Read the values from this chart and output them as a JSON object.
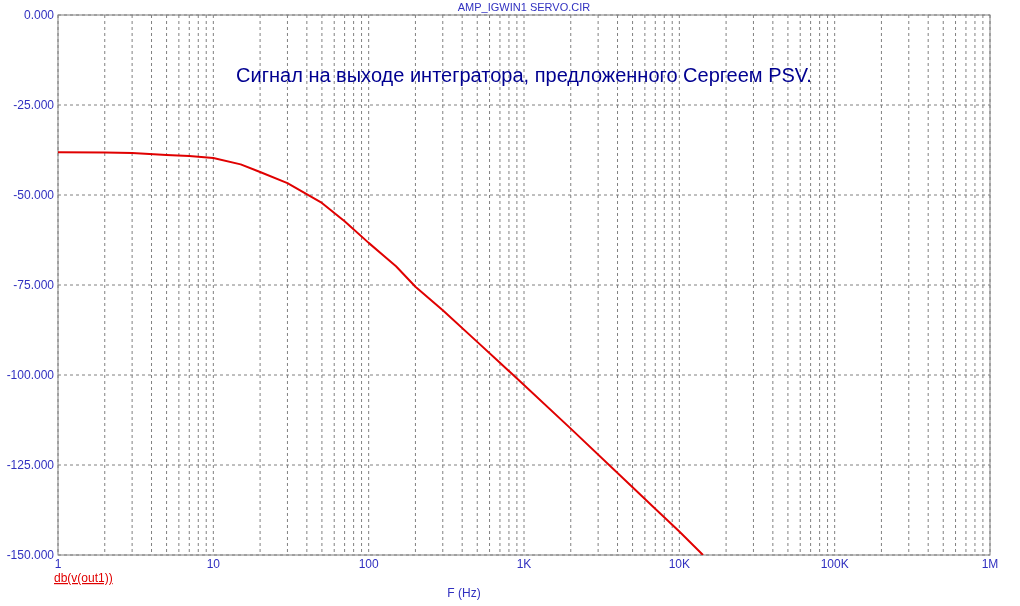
{
  "chart_data": {
    "type": "line",
    "title": "AMP_IGWIN1 SERVO.CIR",
    "xlabel": "F (Hz)",
    "log": "x",
    "annotations": [
      "Сигнал на выходе интегратора, предложенного Сергеем PSV."
    ],
    "x": [
      1,
      2,
      3,
      5,
      7,
      10,
      15,
      20,
      30,
      50,
      70,
      100,
      150,
      200,
      300,
      500,
      700,
      1000,
      2000,
      5000,
      10000,
      14200
    ],
    "series": [
      {
        "name": "db(v(out1))",
        "color": "#e00000",
        "values": [
          -38.1,
          -38.2,
          -38.3,
          -38.9,
          -39.2,
          -39.7,
          -41.5,
          -43.6,
          -46.7,
          -52.2,
          -57.3,
          -63.3,
          -69.8,
          -75.5,
          -82.0,
          -90.8,
          -96.6,
          -102.8,
          -114.9,
          -131.2,
          -143.5,
          -150
        ]
      }
    ],
    "xlim": [
      1,
      1000000
    ],
    "ylim": [
      -150,
      0
    ],
    "xticks": [
      {
        "value": 1,
        "label": "1"
      },
      {
        "value": 2,
        "label": null
      },
      {
        "value": 3,
        "label": null
      },
      {
        "value": 4,
        "label": null
      },
      {
        "value": 5,
        "label": null
      },
      {
        "value": 6,
        "label": null
      },
      {
        "value": 7,
        "label": null
      },
      {
        "value": 8,
        "label": null
      },
      {
        "value": 9,
        "label": null
      },
      {
        "value": 10,
        "label": "10"
      },
      {
        "value": 20,
        "label": null
      },
      {
        "value": 30,
        "label": null
      },
      {
        "value": 40,
        "label": null
      },
      {
        "value": 50,
        "label": null
      },
      {
        "value": 60,
        "label": null
      },
      {
        "value": 70,
        "label": null
      },
      {
        "value": 80,
        "label": null
      },
      {
        "value": 90,
        "label": null
      },
      {
        "value": 100,
        "label": "100"
      },
      {
        "value": 200,
        "label": null
      },
      {
        "value": 300,
        "label": null
      },
      {
        "value": 400,
        "label": null
      },
      {
        "value": 500,
        "label": null
      },
      {
        "value": 600,
        "label": null
      },
      {
        "value": 700,
        "label": null
      },
      {
        "value": 800,
        "label": null
      },
      {
        "value": 900,
        "label": null
      },
      {
        "value": 1000,
        "label": "1K"
      },
      {
        "value": 2000,
        "label": null
      },
      {
        "value": 3000,
        "label": null
      },
      {
        "value": 4000,
        "label": null
      },
      {
        "value": 5000,
        "label": null
      },
      {
        "value": 6000,
        "label": null
      },
      {
        "value": 7000,
        "label": null
      },
      {
        "value": 8000,
        "label": null
      },
      {
        "value": 9000,
        "label": null
      },
      {
        "value": 10000,
        "label": "10K"
      },
      {
        "value": 20000,
        "label": null
      },
      {
        "value": 30000,
        "label": null
      },
      {
        "value": 40000,
        "label": null
      },
      {
        "value": 50000,
        "label": null
      },
      {
        "value": 60000,
        "label": null
      },
      {
        "value": 70000,
        "label": null
      },
      {
        "value": 80000,
        "label": null
      },
      {
        "value": 90000,
        "label": null
      },
      {
        "value": 100000,
        "label": "100K"
      },
      {
        "value": 200000,
        "label": null
      },
      {
        "value": 300000,
        "label": null
      },
      {
        "value": 400000,
        "label": null
      },
      {
        "value": 500000,
        "label": null
      },
      {
        "value": 600000,
        "label": null
      },
      {
        "value": 700000,
        "label": null
      },
      {
        "value": 800000,
        "label": null
      },
      {
        "value": 900000,
        "label": null
      },
      {
        "value": 1000000,
        "label": "1M"
      }
    ],
    "yticks": [
      {
        "value": 0,
        "label": "0.000"
      },
      {
        "value": -25,
        "label": "-25.000"
      },
      {
        "value": -50,
        "label": "-50.000"
      },
      {
        "value": -75,
        "label": "-75.000"
      },
      {
        "value": -100,
        "label": "-100.000"
      },
      {
        "value": -125,
        "label": "-125.000"
      },
      {
        "value": -150,
        "label": "-150.000"
      }
    ],
    "grid": true,
    "line_style": "solid",
    "marker": "none"
  }
}
